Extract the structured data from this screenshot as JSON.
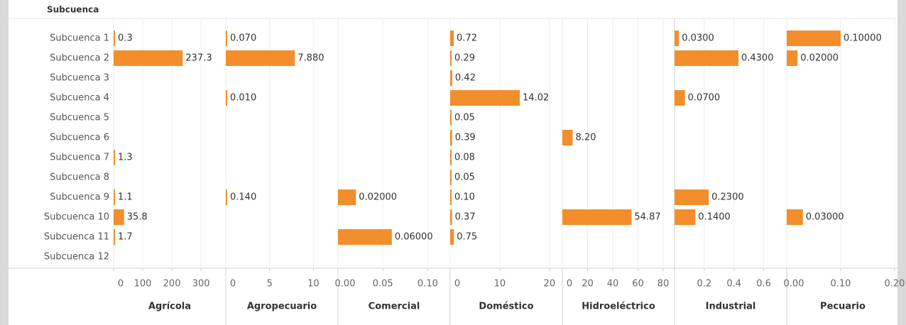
{
  "chart_data": {
    "type": "bar",
    "orientation": "horizontal",
    "row_header": "Subcuenca",
    "color": "#f28e2b",
    "grid": true,
    "categories": [
      "Subcuenca 1",
      "Subcuenca 2",
      "Subcuenca 3",
      "Subcuenca 4",
      "Subcuenca 5",
      "Subcuenca 6",
      "Subcuenca 7",
      "Subcuenca 8",
      "Subcuenca 9",
      "Subcuenca 10",
      "Subcuenca 11",
      "Subcuenca 12"
    ],
    "panels": [
      {
        "title": "Agrícola",
        "xlim": [
          0,
          385
        ],
        "xticks": [
          0,
          100,
          200,
          300
        ],
        "values": [
          0.3,
          237.3,
          null,
          null,
          null,
          null,
          1.3,
          null,
          1.1,
          35.8,
          1.7,
          null
        ],
        "value_labels": [
          "0.3",
          "237.3",
          null,
          null,
          null,
          null,
          "1.3",
          null,
          "1.1",
          "35.8",
          "1.7",
          null
        ]
      },
      {
        "title": "Agropecuario",
        "xlim": [
          0,
          12.8
        ],
        "xticks": [
          0,
          5,
          10
        ],
        "values": [
          0.07,
          7.88,
          null,
          0.01,
          null,
          null,
          null,
          null,
          0.14,
          null,
          null,
          null
        ],
        "value_labels": [
          "0.070",
          "7.880",
          null,
          "0.010",
          null,
          null,
          null,
          null,
          "0.140",
          null,
          null,
          null
        ]
      },
      {
        "title": "Comercial",
        "xlim": [
          0,
          0.125
        ],
        "xticks": [
          {
            "value": 0,
            "label": "0.00"
          },
          0.05,
          {
            "value": 0.1,
            "label": "0.10"
          }
        ],
        "values": [
          null,
          null,
          null,
          null,
          null,
          null,
          null,
          null,
          0.02,
          null,
          0.06,
          null
        ],
        "value_labels": [
          null,
          null,
          null,
          null,
          null,
          null,
          null,
          null,
          "0.02000",
          null,
          "0.06000",
          null
        ]
      },
      {
        "title": "Doméstico",
        "xlim": [
          0,
          22.6
        ],
        "xticks": [
          0,
          10,
          20
        ],
        "values": [
          0.72,
          0.29,
          0.42,
          14.02,
          0.05,
          0.39,
          0.08,
          0.05,
          0.1,
          0.37,
          0.75,
          null
        ],
        "value_labels": [
          "0.72",
          "0.29",
          "0.42",
          "14.02",
          "0.05",
          "0.39",
          "0.08",
          "0.05",
          "0.10",
          "0.37",
          "0.75",
          null
        ]
      },
      {
        "title": "Hidroeléctrico",
        "xlim": [
          0,
          89
        ],
        "xticks": [
          0,
          20,
          40,
          60,
          80
        ],
        "values": [
          null,
          null,
          null,
          null,
          null,
          8.2,
          null,
          null,
          null,
          54.87,
          null,
          null
        ],
        "value_labels": [
          null,
          null,
          null,
          null,
          null,
          "8.20",
          null,
          null,
          null,
          "54.87",
          null,
          null
        ]
      },
      {
        "title": "Industrial",
        "xlim": [
          0,
          0.755
        ],
        "xticks": [
          0.2,
          0.4,
          0.6
        ],
        "values": [
          0.03,
          0.43,
          null,
          0.07,
          null,
          null,
          null,
          null,
          0.23,
          0.14,
          null,
          null
        ],
        "value_labels": [
          "0.0300",
          "0.4300",
          null,
          "0.0700",
          null,
          null,
          null,
          null,
          "0.2300",
          "0.1400",
          null,
          null
        ]
      },
      {
        "title": "Pecuario",
        "xlim": [
          0,
          0.208
        ],
        "xticks": [
          {
            "value": 0,
            "label": "0.00"
          },
          {
            "value": 0.1,
            "label": "0.10"
          },
          {
            "value": 0.2,
            "label": "0.20"
          }
        ],
        "values": [
          0.1,
          0.02,
          null,
          null,
          null,
          null,
          null,
          null,
          null,
          0.03,
          null,
          null
        ],
        "value_labels": [
          "0.10000",
          "0.02000",
          null,
          null,
          null,
          null,
          null,
          null,
          null,
          "0.03000",
          null,
          null
        ]
      }
    ]
  }
}
